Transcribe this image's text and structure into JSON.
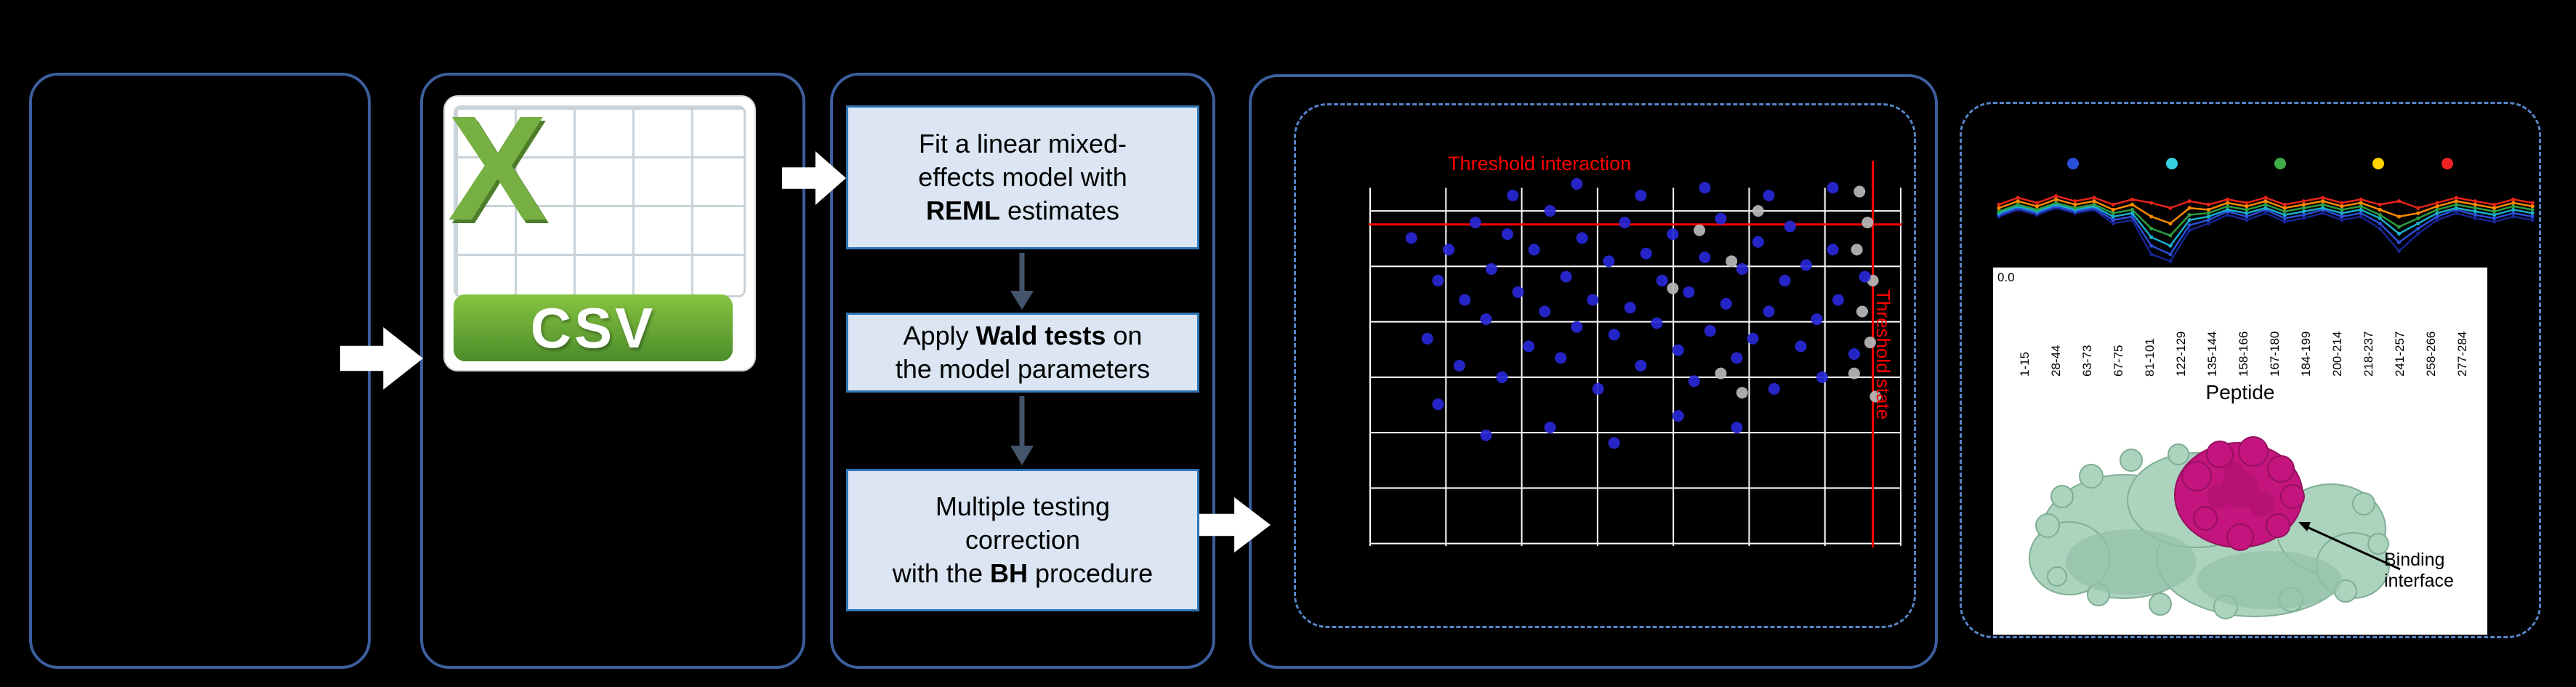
{
  "file_icon": {
    "x_letter": "X",
    "label": "CSV"
  },
  "pipeline": {
    "boxes": [
      {
        "lines": [
          [
            {
              "t": "Fit a linear mixed-"
            }
          ],
          [
            {
              "t": "effects model with"
            }
          ],
          [
            {
              "t": "REML",
              "b": true
            },
            {
              "t": " estimates"
            }
          ]
        ]
      },
      {
        "lines": [
          [
            {
              "t": "Apply "
            },
            {
              "t": "Wald tests",
              "b": true
            },
            {
              "t": " on"
            }
          ],
          [
            {
              "t": "the model parameters"
            }
          ]
        ]
      },
      {
        "lines": [
          [
            {
              "t": "Multiple testing"
            }
          ],
          [
            {
              "t": "correction"
            }
          ],
          [
            {
              "t": "with the "
            },
            {
              "t": "BH",
              "b": true
            },
            {
              "t": " procedure"
            }
          ]
        ]
      }
    ]
  },
  "protein": {
    "annotation_line1": "Binding",
    "annotation_line2": "interface"
  },
  "chart_data": [
    {
      "type": "scatter",
      "hline_label": "Threshold interaction",
      "vline_label": "Threshold state",
      "point_color": "#2828d8",
      "gray_color": "#b8b8b8",
      "threshold_color": "#ff0000",
      "grid_color": "#ffffff",
      "grid": {
        "v": 8,
        "h": 7
      },
      "hline": 0.165,
      "vline": 0.945,
      "points_blue": [
        [
          0.08,
          0.2
        ],
        [
          0.11,
          0.46
        ],
        [
          0.13,
          0.31
        ],
        [
          0.15,
          0.23
        ],
        [
          0.17,
          0.53
        ],
        [
          0.18,
          0.36
        ],
        [
          0.2,
          0.16
        ],
        [
          0.22,
          0.41
        ],
        [
          0.23,
          0.28
        ],
        [
          0.25,
          0.56
        ],
        [
          0.26,
          0.19
        ],
        [
          0.28,
          0.34
        ],
        [
          0.3,
          0.48
        ],
        [
          0.31,
          0.23
        ],
        [
          0.33,
          0.39
        ],
        [
          0.34,
          0.13
        ],
        [
          0.36,
          0.51
        ],
        [
          0.37,
          0.3
        ],
        [
          0.39,
          0.43
        ],
        [
          0.4,
          0.2
        ],
        [
          0.42,
          0.36
        ],
        [
          0.43,
          0.59
        ],
        [
          0.45,
          0.26
        ],
        [
          0.46,
          0.45
        ],
        [
          0.48,
          0.16
        ],
        [
          0.49,
          0.38
        ],
        [
          0.51,
          0.53
        ],
        [
          0.52,
          0.24
        ],
        [
          0.54,
          0.42
        ],
        [
          0.55,
          0.31
        ],
        [
          0.57,
          0.19
        ],
        [
          0.58,
          0.49
        ],
        [
          0.6,
          0.34
        ],
        [
          0.61,
          0.57
        ],
        [
          0.63,
          0.25
        ],
        [
          0.64,
          0.44
        ],
        [
          0.66,
          0.15
        ],
        [
          0.67,
          0.37
        ],
        [
          0.69,
          0.51
        ],
        [
          0.7,
          0.28
        ],
        [
          0.72,
          0.46
        ],
        [
          0.73,
          0.21
        ],
        [
          0.75,
          0.39
        ],
        [
          0.76,
          0.59
        ],
        [
          0.78,
          0.31
        ],
        [
          0.79,
          0.17
        ],
        [
          0.81,
          0.48
        ],
        [
          0.82,
          0.27
        ],
        [
          0.84,
          0.41
        ],
        [
          0.85,
          0.56
        ],
        [
          0.87,
          0.23
        ],
        [
          0.88,
          0.36
        ],
        [
          0.34,
          0.69
        ],
        [
          0.46,
          0.73
        ],
        [
          0.58,
          0.66
        ],
        [
          0.13,
          0.63
        ],
        [
          0.22,
          0.71
        ],
        [
          0.69,
          0.69
        ],
        [
          0.51,
          0.09
        ],
        [
          0.63,
          0.07
        ],
        [
          0.39,
          0.06
        ],
        [
          0.27,
          0.09
        ],
        [
          0.75,
          0.09
        ],
        [
          0.87,
          0.07
        ],
        [
          0.93,
          0.3
        ],
        [
          0.91,
          0.5
        ]
      ],
      "points_gray": [
        [
          0.92,
          0.08
        ],
        [
          0.935,
          0.16
        ],
        [
          0.915,
          0.23
        ],
        [
          0.945,
          0.31
        ],
        [
          0.925,
          0.39
        ],
        [
          0.94,
          0.47
        ],
        [
          0.91,
          0.55
        ],
        [
          0.95,
          0.61
        ],
        [
          0.62,
          0.18
        ],
        [
          0.68,
          0.26
        ],
        [
          0.57,
          0.33
        ],
        [
          0.73,
          0.13
        ],
        [
          0.66,
          0.55
        ],
        [
          0.7,
          0.6
        ]
      ]
    },
    {
      "type": "line",
      "legend_colors": [
        "#2b4fd8",
        "#35cfe0",
        "#3fae49",
        "#ffd200",
        "#ee2222"
      ],
      "legend_x": [
        112,
        248,
        397,
        532,
        627
      ],
      "series": [
        {
          "color": "#16248f",
          "y": [
            0.44,
            0.36,
            0.42,
            0.34,
            0.4,
            0.36,
            0.52,
            0.48,
            0.88,
            0.96,
            0.6,
            0.52,
            0.42,
            0.48,
            0.4,
            0.5,
            0.46,
            0.4,
            0.48,
            0.44,
            0.58,
            0.84,
            0.64,
            0.48,
            0.4,
            0.46,
            0.5,
            0.44,
            0.48
          ]
        },
        {
          "color": "#2b4fd8",
          "y": [
            0.42,
            0.34,
            0.4,
            0.32,
            0.38,
            0.34,
            0.48,
            0.44,
            0.78,
            0.88,
            0.54,
            0.48,
            0.38,
            0.44,
            0.36,
            0.46,
            0.42,
            0.36,
            0.44,
            0.4,
            0.52,
            0.74,
            0.58,
            0.44,
            0.36,
            0.42,
            0.46,
            0.4,
            0.44
          ]
        },
        {
          "color": "#19aecb",
          "y": [
            0.4,
            0.32,
            0.38,
            0.3,
            0.36,
            0.32,
            0.44,
            0.4,
            0.68,
            0.78,
            0.48,
            0.44,
            0.36,
            0.4,
            0.34,
            0.42,
            0.38,
            0.34,
            0.4,
            0.36,
            0.46,
            0.64,
            0.52,
            0.4,
            0.34,
            0.38,
            0.42,
            0.36,
            0.4
          ]
        },
        {
          "color": "#2f9e41",
          "y": [
            0.38,
            0.3,
            0.36,
            0.28,
            0.34,
            0.3,
            0.4,
            0.36,
            0.58,
            0.66,
            0.42,
            0.4,
            0.32,
            0.36,
            0.3,
            0.38,
            0.34,
            0.3,
            0.36,
            0.32,
            0.42,
            0.56,
            0.46,
            0.36,
            0.3,
            0.34,
            0.38,
            0.32,
            0.36
          ]
        },
        {
          "color": "#ff8a00",
          "y": [
            0.34,
            0.26,
            0.32,
            0.24,
            0.3,
            0.26,
            0.36,
            0.3,
            0.44,
            0.52,
            0.34,
            0.36,
            0.28,
            0.32,
            0.26,
            0.34,
            0.3,
            0.26,
            0.32,
            0.28,
            0.36,
            0.44,
            0.4,
            0.32,
            0.26,
            0.3,
            0.34,
            0.28,
            0.32
          ]
        },
        {
          "color": "#e8231a",
          "y": [
            0.3,
            0.22,
            0.28,
            0.2,
            0.26,
            0.22,
            0.3,
            0.24,
            0.28,
            0.34,
            0.26,
            0.3,
            0.24,
            0.28,
            0.22,
            0.3,
            0.26,
            0.22,
            0.28,
            0.24,
            0.3,
            0.26,
            0.34,
            0.28,
            0.22,
            0.26,
            0.3,
            0.24,
            0.28
          ]
        }
      ],
      "y_tick_label": "0.0",
      "x_ticks": [
        "1-15",
        "28-44",
        "63-73",
        "67-75",
        "81-101",
        "122-129",
        "135-144",
        "158-166",
        "167-180",
        "184-199",
        "200-214",
        "218-237",
        "241-257",
        "258-266",
        "277-284"
      ],
      "xlabel": "Peptide"
    }
  ]
}
